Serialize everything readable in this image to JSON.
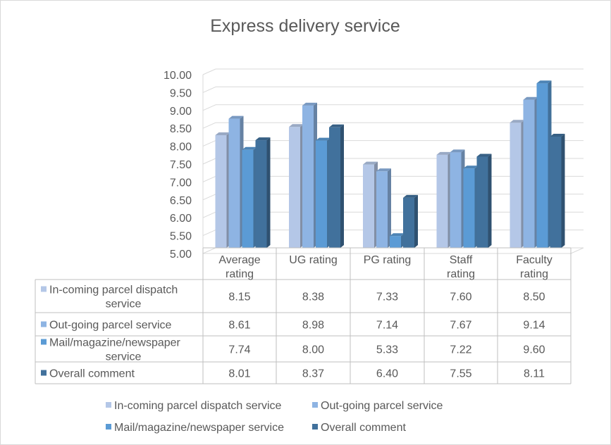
{
  "chart_data": {
    "type": "bar",
    "style": "3d-clustered-column-with-data-table",
    "title": "Express delivery service",
    "categories": [
      [
        "Average",
        "rating"
      ],
      [
        "UG rating"
      ],
      [
        "PG rating"
      ],
      [
        "Staff",
        "rating"
      ],
      [
        "Faculty",
        "rating"
      ]
    ],
    "ylim": [
      5.0,
      10.0
    ],
    "yticks": [
      "5.00",
      "5.50",
      "6.00",
      "6.50",
      "7.00",
      "7.50",
      "8.00",
      "8.50",
      "9.00",
      "9.50",
      "10.00"
    ],
    "ytick_values": [
      5.0,
      5.5,
      6.0,
      6.5,
      7.0,
      7.5,
      8.0,
      8.5,
      9.0,
      9.5,
      10.0
    ],
    "grid": true,
    "legend_position": "bottom",
    "series": [
      {
        "name": "In-coming parcel dispatch service",
        "table_label": [
          "In-coming parcel dispatch",
          "service"
        ],
        "color": "#b4c7e7",
        "values": [
          8.15,
          8.38,
          7.33,
          7.6,
          8.5
        ],
        "labels": [
          "8.15",
          "8.38",
          "7.33",
          "7.60",
          "8.50"
        ]
      },
      {
        "name": "Out-going parcel service",
        "table_label": [
          "Out-going parcel service"
        ],
        "color": "#8eb4e3",
        "values": [
          8.61,
          8.98,
          7.14,
          7.67,
          9.14
        ],
        "labels": [
          "8.61",
          "8.98",
          "7.14",
          "7.67",
          "9.14"
        ]
      },
      {
        "name": "Mail/magazine/newspaper service",
        "table_label": [
          "Mail/magazine/newspaper",
          "service"
        ],
        "color": "#5b9bd5",
        "values": [
          7.74,
          8.0,
          5.33,
          7.22,
          9.6
        ],
        "labels": [
          "7.74",
          "8.00",
          "5.33",
          "7.22",
          "9.60"
        ]
      },
      {
        "name": "Overall comment",
        "table_label": [
          "Overall comment"
        ],
        "color": "#41719c",
        "values": [
          8.01,
          8.37,
          6.4,
          7.55,
          8.11
        ],
        "labels": [
          "8.01",
          "8.37",
          "6.40",
          "7.55",
          "8.11"
        ]
      }
    ]
  }
}
